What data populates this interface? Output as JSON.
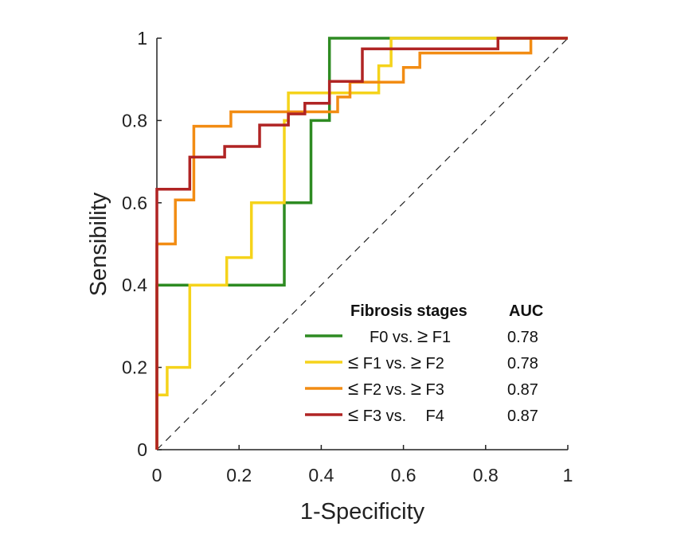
{
  "chart_data": {
    "type": "line",
    "xlabel": "1-Specificity",
    "ylabel": "Sensibility",
    "xlim": [
      0,
      1
    ],
    "ylim": [
      0,
      1
    ],
    "x_ticks": [
      "0",
      "0.2",
      "0.4",
      "0.6",
      "0.8",
      "1"
    ],
    "y_ticks": [
      "0",
      "0.2",
      "0.4",
      "0.6",
      "0.8",
      "1"
    ],
    "reference_line": {
      "x": [
        0,
        1
      ],
      "y": [
        0,
        1
      ],
      "style": "dashed"
    },
    "legend": {
      "header": "Fibrosis stages",
      "value_header": "AUC",
      "placement": "bottom-right"
    },
    "series": [
      {
        "name_parts": [
          "F0 vs.",
          "≥",
          "F1"
        ],
        "auc": "0.78",
        "color": "#2e8b22",
        "x": [
          0,
          0,
          0.31,
          0.31,
          0.375,
          0.375,
          0.42,
          0.42,
          0.57,
          1
        ],
        "y": [
          0,
          0.4,
          0.4,
          0.6,
          0.6,
          0.8,
          0.8,
          1,
          1,
          1
        ]
      },
      {
        "name_parts": [
          "≤",
          "F1 vs.",
          "≥",
          "F2"
        ],
        "auc": "0.78",
        "color": "#f5d31b",
        "x": [
          0,
          0,
          0.025,
          0.025,
          0.08,
          0.08,
          0.17,
          0.17,
          0.23,
          0.23,
          0.31,
          0.31,
          0.32,
          0.32,
          0.54,
          0.54,
          0.57,
          0.57,
          1
        ],
        "y": [
          0,
          0.133,
          0.133,
          0.2,
          0.2,
          0.4,
          0.4,
          0.467,
          0.467,
          0.6,
          0.6,
          0.8,
          0.8,
          0.867,
          0.867,
          0.933,
          0.933,
          1,
          1
        ]
      },
      {
        "name_parts": [
          "≤",
          "F2 vs.",
          "≥",
          "F3"
        ],
        "auc": "0.87",
        "color": "#f28c13",
        "x": [
          0,
          0,
          0.045,
          0.045,
          0.09,
          0.09,
          0.18,
          0.18,
          0.44,
          0.44,
          0.47,
          0.47,
          0.6,
          0.6,
          0.64,
          0.64,
          0.91,
          0.91,
          1
        ],
        "y": [
          0,
          0.5,
          0.5,
          0.607,
          0.607,
          0.786,
          0.786,
          0.821,
          0.821,
          0.857,
          0.857,
          0.893,
          0.893,
          0.929,
          0.929,
          0.964,
          0.964,
          1,
          1
        ]
      },
      {
        "name_parts": [
          "≤",
          "F3 vs.",
          "",
          "F4"
        ],
        "auc": "0.87",
        "color": "#b02424",
        "x": [
          0,
          0,
          0.08,
          0.08,
          0.165,
          0.165,
          0.25,
          0.25,
          0.32,
          0.32,
          0.36,
          0.36,
          0.42,
          0.42,
          0.45,
          0.45,
          0.5,
          0.5,
          0.83,
          0.83,
          1
        ],
        "y": [
          0,
          0.633,
          0.633,
          0.711,
          0.711,
          0.737,
          0.737,
          0.789,
          0.789,
          0.816,
          0.816,
          0.842,
          0.842,
          0.895,
          0.895,
          0.895,
          0.895,
          0.974,
          0.974,
          1,
          1
        ]
      }
    ]
  }
}
